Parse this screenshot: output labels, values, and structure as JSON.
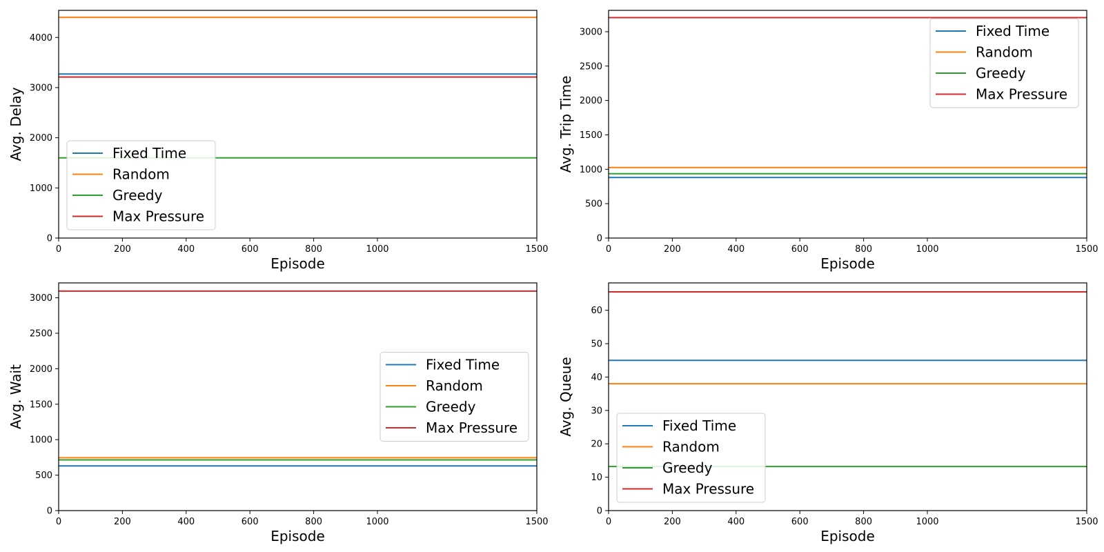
{
  "figure": {
    "colors": {
      "Fixed Time": "#1f77b4",
      "Random": "#ff7f0e",
      "Greedy": "#2ca02c",
      "Max Pressure": "#d62728"
    }
  },
  "chart_data": [
    {
      "type": "line",
      "xlabel": "Episode",
      "ylabel": "Avg. Delay",
      "xlim": [
        0,
        1500
      ],
      "ylim": [
        0,
        4540
      ],
      "xticks": [
        0,
        200,
        400,
        600,
        800,
        1000,
        1500
      ],
      "yticks": [
        0,
        1000,
        2000,
        3000,
        4000
      ],
      "legend_loc": "lower-left",
      "series": [
        {
          "name": "Fixed Time",
          "x": [
            0,
            1500
          ],
          "y": [
            3270,
            3270
          ]
        },
        {
          "name": "Random",
          "x": [
            0,
            1500
          ],
          "y": [
            4400,
            4400
          ]
        },
        {
          "name": "Greedy",
          "x": [
            0,
            1500
          ],
          "y": [
            1600,
            1600
          ]
        },
        {
          "name": "Max Pressure",
          "x": [
            0,
            1500
          ],
          "y": [
            3210,
            3210
          ]
        }
      ]
    },
    {
      "type": "line",
      "xlabel": "Episode",
      "ylabel": "Avg. Trip Time",
      "xlim": [
        0,
        1500
      ],
      "ylim": [
        0,
        3310
      ],
      "xticks": [
        0,
        200,
        400,
        600,
        800,
        1000,
        1500
      ],
      "yticks": [
        0,
        500,
        1000,
        1500,
        2000,
        2500,
        3000
      ],
      "legend_loc": "upper-right",
      "series": [
        {
          "name": "Fixed Time",
          "x": [
            0,
            1500
          ],
          "y": [
            880,
            880
          ]
        },
        {
          "name": "Random",
          "x": [
            0,
            1500
          ],
          "y": [
            1025,
            1025
          ]
        },
        {
          "name": "Greedy",
          "x": [
            0,
            1500
          ],
          "y": [
            935,
            935
          ]
        },
        {
          "name": "Max Pressure",
          "x": [
            0,
            1500
          ],
          "y": [
            3205,
            3205
          ]
        }
      ]
    },
    {
      "type": "line",
      "xlabel": "Episode",
      "ylabel": "Avg. Wait",
      "xlim": [
        0,
        1500
      ],
      "ylim": [
        0,
        3210
      ],
      "xticks": [
        0,
        200,
        400,
        600,
        800,
        1000,
        1500
      ],
      "yticks": [
        0,
        500,
        1000,
        1500,
        2000,
        2500,
        3000
      ],
      "legend_loc": "center-right",
      "series": [
        {
          "name": "Fixed Time",
          "x": [
            0,
            1500
          ],
          "y": [
            630,
            630
          ]
        },
        {
          "name": "Random",
          "x": [
            0,
            1500
          ],
          "y": [
            745,
            745
          ]
        },
        {
          "name": "Greedy",
          "x": [
            0,
            1500
          ],
          "y": [
            715,
            715
          ]
        },
        {
          "name": "Max Pressure",
          "x": [
            0,
            1500
          ],
          "y": [
            3095,
            3095
          ]
        }
      ]
    },
    {
      "type": "line",
      "xlabel": "Episode",
      "ylabel": "Avg. Queue",
      "xlim": [
        0,
        1500
      ],
      "ylim": [
        0,
        68.2
      ],
      "xticks": [
        0,
        200,
        400,
        600,
        800,
        1000,
        1500
      ],
      "yticks": [
        0,
        10,
        20,
        30,
        40,
        50,
        60
      ],
      "legend_loc": "lower-left",
      "series": [
        {
          "name": "Fixed Time",
          "x": [
            0,
            1500
          ],
          "y": [
            45.0,
            45.0
          ]
        },
        {
          "name": "Random",
          "x": [
            0,
            1500
          ],
          "y": [
            38.0,
            38.0
          ]
        },
        {
          "name": "Greedy",
          "x": [
            0,
            1500
          ],
          "y": [
            13.2,
            13.2
          ]
        },
        {
          "name": "Max Pressure",
          "x": [
            0,
            1500
          ],
          "y": [
            65.5,
            65.5
          ]
        }
      ]
    }
  ]
}
